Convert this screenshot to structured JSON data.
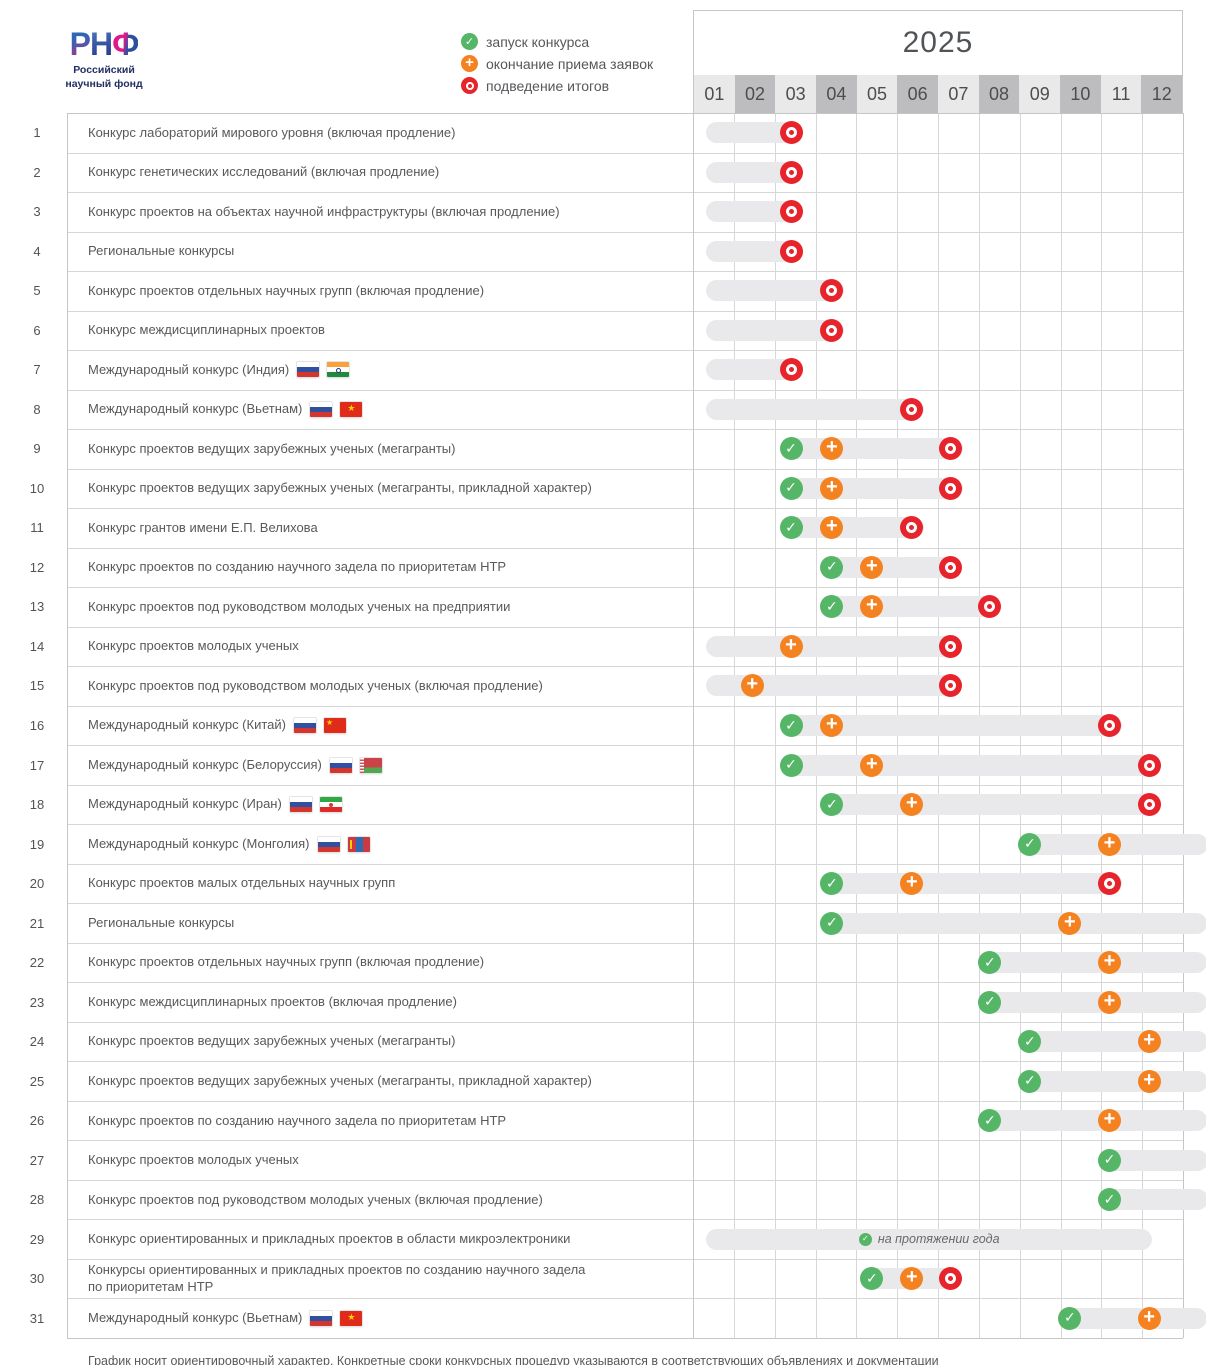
{
  "logo": {
    "letters": [
      "Р",
      "Н",
      "Ф"
    ],
    "name_line1": "Российский",
    "name_line2": "научный фонд"
  },
  "legend": [
    {
      "icon": "launch-icon",
      "label": "запуск конкурса"
    },
    {
      "icon": "deadline-icon",
      "label": "окончание приема заявок"
    },
    {
      "icon": "results-icon",
      "label": "подведение итогов"
    }
  ],
  "year": "2025",
  "months": [
    "01",
    "02",
    "03",
    "04",
    "05",
    "06",
    "07",
    "08",
    "09",
    "10",
    "11",
    "12"
  ],
  "footer": "График носит ориентировочный характер. Конкретные сроки конкурсных процедур указываются в соответствующих объявлениях и документации",
  "colors": {
    "launch": "#55b667",
    "deadline": "#f58220",
    "results": "#e7242b",
    "bar": "#e9e9eb",
    "grid": "#d7d7d7",
    "border": "#c6c6c6",
    "month-light": "#e9e9ea",
    "month-dark": "#bdbdbf"
  },
  "chart_data": {
    "type": "bar",
    "subtype": "gantt-timeline",
    "title": "2025",
    "x_axis": {
      "unit": "month",
      "ticks": [
        "01",
        "02",
        "03",
        "04",
        "05",
        "06",
        "07",
        "08",
        "09",
        "10",
        "11",
        "12"
      ]
    },
    "legend_position": "top-left",
    "event_types": {
      "launch": "запуск конкурса",
      "deadline": "окончание приема заявок",
      "results": "подведение итогов"
    },
    "rows": [
      {
        "num": 1,
        "label": "Конкурс лабораторий мирового уровня (включая продление)",
        "flags": [],
        "bar": {
          "start": 1.32,
          "end": 3.7
        },
        "events": [
          {
            "type": "results",
            "month": 3,
            "p": 3.4
          }
        ]
      },
      {
        "num": 2,
        "label": "Конкурс генетических исследований (включая продление)",
        "flags": [],
        "bar": {
          "start": 1.32,
          "end": 3.7
        },
        "events": [
          {
            "type": "results",
            "month": 3,
            "p": 3.4
          }
        ]
      },
      {
        "num": 3,
        "label": "Конкурс проектов на объектах научной инфраструктуры (включая продление)",
        "flags": [],
        "bar": {
          "start": 1.32,
          "end": 3.7
        },
        "events": [
          {
            "type": "results",
            "month": 3,
            "p": 3.4
          }
        ]
      },
      {
        "num": 4,
        "label": "Региональные конкурсы",
        "flags": [],
        "bar": {
          "start": 1.32,
          "end": 3.7
        },
        "events": [
          {
            "type": "results",
            "month": 3,
            "p": 3.4
          }
        ]
      },
      {
        "num": 5,
        "label": "Конкурс проектов отдельных научных групп (включая продление)",
        "flags": [],
        "bar": {
          "start": 1.32,
          "end": 4.7
        },
        "events": [
          {
            "type": "results",
            "month": 4,
            "p": 4.4
          }
        ]
      },
      {
        "num": 6,
        "label": "Конкурс междисциплинарных проектов",
        "flags": [],
        "bar": {
          "start": 1.32,
          "end": 4.7
        },
        "events": [
          {
            "type": "results",
            "month": 4,
            "p": 4.4
          }
        ]
      },
      {
        "num": 7,
        "label": "Международный конкурс (Индия)",
        "flags": [
          "russia",
          "india"
        ],
        "bar": {
          "start": 1.32,
          "end": 3.7
        },
        "events": [
          {
            "type": "results",
            "month": 3,
            "p": 3.4
          }
        ]
      },
      {
        "num": 8,
        "label": "Международный конкурс (Вьетнам)",
        "flags": [
          "russia",
          "vietnam"
        ],
        "bar": {
          "start": 1.32,
          "end": 6.65
        },
        "events": [
          {
            "type": "results",
            "month": 6,
            "p": 6.36
          }
        ]
      },
      {
        "num": 9,
        "label": "Конкурс проектов ведущих зарубежных ученых (мегагранты)",
        "flags": [],
        "bar": {
          "start": 3.25,
          "end": 7.6
        },
        "events": [
          {
            "type": "launch",
            "month": 3,
            "p": 3.4
          },
          {
            "type": "deadline",
            "month": 4,
            "p": 4.4
          },
          {
            "type": "results",
            "month": 7,
            "p": 7.3
          }
        ]
      },
      {
        "num": 10,
        "label": "Конкурс проектов ведущих зарубежных ученых (мегагранты, прикладной характер)",
        "flags": [],
        "bar": {
          "start": 3.25,
          "end": 7.6
        },
        "events": [
          {
            "type": "launch",
            "month": 3,
            "p": 3.4
          },
          {
            "type": "deadline",
            "month": 4,
            "p": 4.4
          },
          {
            "type": "results",
            "month": 7,
            "p": 7.3
          }
        ]
      },
      {
        "num": 11,
        "label": "Конкурс грантов имени Е.П. Велихова",
        "flags": [],
        "bar": {
          "start": 3.25,
          "end": 6.65
        },
        "events": [
          {
            "type": "launch",
            "month": 3,
            "p": 3.4
          },
          {
            "type": "deadline",
            "month": 4,
            "p": 4.4
          },
          {
            "type": "results",
            "month": 6,
            "p": 6.36
          }
        ]
      },
      {
        "num": 12,
        "label": "Конкурс проектов по созданию научного задела по приоритетам НТР",
        "flags": [],
        "bar": {
          "start": 4.25,
          "end": 7.6
        },
        "events": [
          {
            "type": "launch",
            "month": 4,
            "p": 4.4
          },
          {
            "type": "deadline",
            "month": 5,
            "p": 5.38
          },
          {
            "type": "results",
            "month": 7,
            "p": 7.3
          }
        ]
      },
      {
        "num": 13,
        "label": "Конкурс проектов под руководством молодых ученых на предприятии",
        "flags": [],
        "bar": {
          "start": 4.25,
          "end": 8.55
        },
        "events": [
          {
            "type": "launch",
            "month": 4,
            "p": 4.4
          },
          {
            "type": "deadline",
            "month": 5,
            "p": 5.38
          },
          {
            "type": "results",
            "month": 8,
            "p": 8.27
          }
        ]
      },
      {
        "num": 14,
        "label": "Конкурс проектов молодых ученых",
        "flags": [],
        "bar": {
          "start": 1.32,
          "end": 7.6
        },
        "events": [
          {
            "type": "deadline",
            "month": 3,
            "p": 3.4
          },
          {
            "type": "results",
            "month": 7,
            "p": 7.3
          }
        ]
      },
      {
        "num": 15,
        "label": "Конкурс проектов под руководством молодых ученых (включая продление)",
        "flags": [],
        "bar": {
          "start": 1.32,
          "end": 7.6
        },
        "events": [
          {
            "type": "deadline",
            "month": 2,
            "p": 2.45
          },
          {
            "type": "results",
            "month": 7,
            "p": 7.3
          }
        ]
      },
      {
        "num": 16,
        "label": "Международный конкурс (Китай)",
        "flags": [
          "russia",
          "china"
        ],
        "bar": {
          "start": 3.25,
          "end": 11.5
        },
        "events": [
          {
            "type": "launch",
            "month": 3,
            "p": 3.4
          },
          {
            "type": "deadline",
            "month": 4,
            "p": 4.4
          },
          {
            "type": "results",
            "month": 11,
            "p": 11.2
          }
        ]
      },
      {
        "num": 17,
        "label": "Международный конкурс (Белоруссия)",
        "flags": [
          "russia",
          "belarus"
        ],
        "bar": {
          "start": 3.25,
          "end": 12.45
        },
        "events": [
          {
            "type": "launch",
            "month": 3,
            "p": 3.4
          },
          {
            "type": "deadline",
            "month": 5,
            "p": 5.38
          },
          {
            "type": "results",
            "month": 12,
            "p": 12.17
          }
        ]
      },
      {
        "num": 18,
        "label": "Международный конкурс (Иран)",
        "flags": [
          "russia",
          "iran"
        ],
        "bar": {
          "start": 4.25,
          "end": 12.45
        },
        "events": [
          {
            "type": "launch",
            "month": 4,
            "p": 4.4
          },
          {
            "type": "deadline",
            "month": 6,
            "p": 6.36
          },
          {
            "type": "results",
            "month": 12,
            "p": 12.17
          }
        ]
      },
      {
        "num": 19,
        "label": "Международный конкурс (Монголия)",
        "flags": [
          "russia",
          "mongolia"
        ],
        "bar": {
          "start": 9.1,
          "end": 13.6,
          "clipped": true
        },
        "events": [
          {
            "type": "launch",
            "month": 9,
            "p": 9.25
          },
          {
            "type": "deadline",
            "month": 11,
            "p": 11.2
          }
        ]
      },
      {
        "num": 20,
        "label": "Конкурс проектов малых отдельных научных групп",
        "flags": [],
        "bar": {
          "start": 4.25,
          "end": 11.5
        },
        "events": [
          {
            "type": "launch",
            "month": 4,
            "p": 4.4
          },
          {
            "type": "deadline",
            "month": 6,
            "p": 6.36
          },
          {
            "type": "results",
            "month": 11,
            "p": 11.2
          }
        ]
      },
      {
        "num": 21,
        "label": "Региональные конкурсы",
        "flags": [],
        "bar": {
          "start": 4.25,
          "end": 13.6,
          "clipped": true
        },
        "events": [
          {
            "type": "launch",
            "month": 4,
            "p": 4.4
          },
          {
            "type": "deadline",
            "month": 10,
            "p": 10.23
          }
        ]
      },
      {
        "num": 22,
        "label": "Конкурс проектов отдельных научных групп (включая продление)",
        "flags": [],
        "bar": {
          "start": 8.1,
          "end": 13.6,
          "clipped": true
        },
        "events": [
          {
            "type": "launch",
            "month": 8,
            "p": 8.27
          },
          {
            "type": "deadline",
            "month": 11,
            "p": 11.2
          }
        ]
      },
      {
        "num": 23,
        "label": "Конкурс междисциплинарных проектов (включая продление)",
        "flags": [],
        "bar": {
          "start": 8.1,
          "end": 13.6,
          "clipped": true
        },
        "events": [
          {
            "type": "launch",
            "month": 8,
            "p": 8.27
          },
          {
            "type": "deadline",
            "month": 11,
            "p": 11.2
          }
        ]
      },
      {
        "num": 24,
        "label": "Конкурс проектов ведущих зарубежных ученых (мегагранты)",
        "flags": [],
        "bar": {
          "start": 9.1,
          "end": 13.6,
          "clipped": true
        },
        "events": [
          {
            "type": "launch",
            "month": 9,
            "p": 9.25
          },
          {
            "type": "deadline",
            "month": 12,
            "p": 12.17
          }
        ]
      },
      {
        "num": 25,
        "label": "Конкурс проектов ведущих зарубежных ученых (мегагранты, прикладной характер)",
        "flags": [],
        "bar": {
          "start": 9.1,
          "end": 13.6,
          "clipped": true
        },
        "events": [
          {
            "type": "launch",
            "month": 9,
            "p": 9.25
          },
          {
            "type": "deadline",
            "month": 12,
            "p": 12.17
          }
        ]
      },
      {
        "num": 26,
        "label": "Конкурс проектов по созданию научного задела по приоритетам НТР",
        "flags": [],
        "bar": {
          "start": 8.1,
          "end": 13.6,
          "clipped": true
        },
        "events": [
          {
            "type": "launch",
            "month": 8,
            "p": 8.27
          },
          {
            "type": "deadline",
            "month": 11,
            "p": 11.2
          }
        ]
      },
      {
        "num": 27,
        "label": "Конкурс проектов молодых ученых",
        "flags": [],
        "bar": {
          "start": 11.05,
          "end": 13.6,
          "clipped": true
        },
        "events": [
          {
            "type": "launch",
            "month": 11,
            "p": 11.2
          }
        ]
      },
      {
        "num": 28,
        "label": "Конкурс проектов под руководством молодых ученых (включая продление)",
        "flags": [],
        "bar": {
          "start": 11.05,
          "end": 13.6,
          "clipped": true
        },
        "events": [
          {
            "type": "launch",
            "month": 11,
            "p": 11.2
          }
        ]
      },
      {
        "num": 29,
        "label": "Конкурс ориентированных и прикладных проектов в области микроэлектроники",
        "flags": [],
        "bar": {
          "start": 1.32,
          "end": 12.25
        },
        "events": [],
        "annotation": "на протяжении года",
        "annotation_icon": "launch"
      },
      {
        "num": 30,
        "label": "Конкурсы ориентированных и прикладных проектов по созданию научного задела\nпо приоритетам НТР",
        "flags": [],
        "bar": {
          "start": 5.25,
          "end": 7.6
        },
        "events": [
          {
            "type": "launch",
            "month": 5,
            "p": 5.38
          },
          {
            "type": "deadline",
            "month": 6,
            "p": 6.36
          },
          {
            "type": "results",
            "month": 7,
            "p": 7.3
          }
        ]
      },
      {
        "num": 31,
        "label": "Международный конкурс (Вьетнам)",
        "flags": [
          "russia",
          "vietnam"
        ],
        "bar": {
          "start": 10.1,
          "end": 13.6,
          "clipped": true
        },
        "events": [
          {
            "type": "launch",
            "month": 10,
            "p": 10.23
          },
          {
            "type": "deadline",
            "month": 12,
            "p": 12.17
          }
        ]
      }
    ]
  }
}
